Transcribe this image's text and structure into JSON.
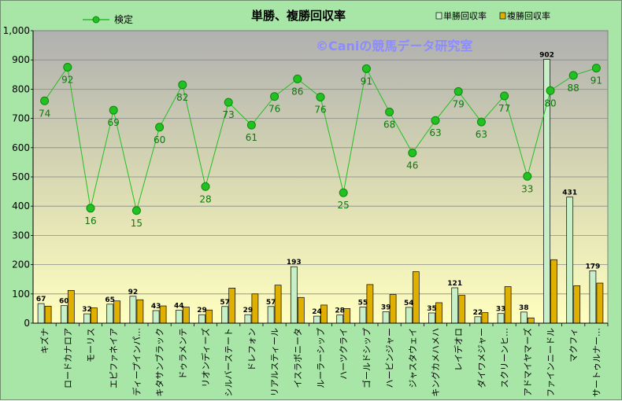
{
  "chart_data": {
    "type": "bar",
    "title": "単勝、複勝回収率",
    "watermark": "©Caniの競馬データ研究室",
    "categories": [
      "キズナ",
      "ロードカナロア",
      "モーリス",
      "エピファネイア",
      "ディープインパ…",
      "キタサンブラック",
      "ドゥラメンテ",
      "リオンディーズ",
      "シルバーステート",
      "ドレフォン",
      "リアルスティール",
      "イスラボニータ",
      "ルーラーシップ",
      "ハーツクライ",
      "ゴールドシップ",
      "ハービンジャー",
      "ジャスタウェイ",
      "キングカメハメハ",
      "レイデオロ",
      "ダイワメジャー",
      "スクリーンヒ…",
      "アドマイヤマーズ",
      "ファインニードル",
      "マクフィ",
      "サートゥルナー…"
    ],
    "series": [
      {
        "name": "単勝回収率",
        "color": "#c8f0c8",
        "values": [
          67,
          60,
          32,
          65,
          92,
          43,
          44,
          29,
          57,
          29,
          57,
          193,
          24,
          28,
          55,
          39,
          54,
          35,
          121,
          22,
          33,
          38,
          902,
          431,
          179
        ]
      },
      {
        "name": "複勝回収率",
        "color": "#e0b000",
        "values": [
          58,
          112,
          52,
          76,
          80,
          59,
          55,
          45,
          120,
          100,
          130,
          88,
          62,
          50,
          132,
          98,
          176,
          70,
          95,
          36,
          125,
          18,
          217,
          128,
          137
        ]
      },
      {
        "name": "検定",
        "color": "#22c022",
        "values": [
          74,
          92,
          16,
          69,
          15,
          60,
          82,
          28,
          73,
          61,
          76,
          86,
          76,
          25,
          91,
          68,
          46,
          63,
          79,
          63,
          77,
          33,
          80,
          88,
          91
        ],
        "y_positions": [
          760,
          875,
          393,
          728,
          385,
          670,
          815,
          467,
          755,
          677,
          775,
          835,
          773,
          446,
          870,
          722,
          582,
          693,
          792,
          688,
          777,
          502,
          795,
          847,
          872
        ]
      }
    ],
    "ylim": [
      0,
      1000
    ],
    "yticks": [
      "0",
      "100",
      "200",
      "300",
      "400",
      "500",
      "600",
      "700",
      "800",
      "900",
      "1,000"
    ],
    "grid": true,
    "legend_bars": "top-right",
    "legend_line": "top-left"
  }
}
